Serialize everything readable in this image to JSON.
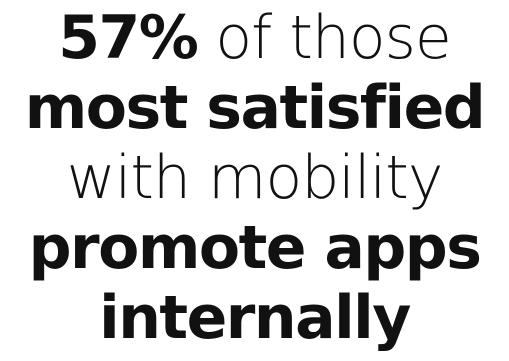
{
  "headline": {
    "line1_bold": "57%",
    "line1_rest": " of those",
    "line2": "most satisfied",
    "line3": "with mobility",
    "line4": "promote apps",
    "line5": "internally"
  },
  "colors": {
    "background": "#ffffff",
    "text": "#111111"
  }
}
